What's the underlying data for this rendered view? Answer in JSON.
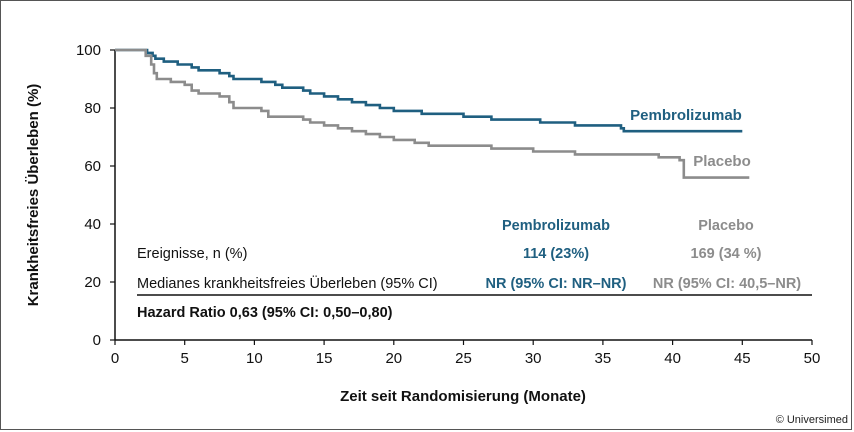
{
  "chart_data": {
    "type": "line",
    "title": "",
    "xlabel": "Zeit seit Randomisierung (Monate)",
    "ylabel": "Krankheitsfreies Überleben (%)",
    "xlim": [
      0,
      50
    ],
    "ylim": [
      0,
      100
    ],
    "xticks": [
      "0",
      "5",
      "10",
      "15",
      "20",
      "25",
      "30",
      "35",
      "40",
      "45",
      "50"
    ],
    "yticks": [
      "0",
      "20",
      "40",
      "60",
      "80",
      "100"
    ],
    "grid": false,
    "series": [
      {
        "name": "Pembrolizumab",
        "color": "#1f5f80",
        "x": [
          0,
          2.3,
          2.7,
          2.9,
          3.5,
          4.5,
          5.5,
          6.0,
          7.5,
          8.2,
          8.5,
          10.5,
          11.5,
          12.0,
          13.5,
          14.0,
          15.0,
          16.0,
          17.0,
          18.0,
          19.0,
          20.0,
          22.0,
          22.5,
          25.0,
          26.0,
          27.0,
          28.5,
          30.5,
          33.0,
          35.0,
          36.3,
          36.5,
          45.0
        ],
        "y": [
          100,
          99,
          98,
          97,
          96,
          95,
          94,
          93,
          92,
          91,
          90,
          89,
          88,
          87,
          86,
          85,
          84,
          83,
          82,
          81,
          80,
          79,
          78,
          78,
          77,
          77,
          76,
          76,
          75,
          74,
          74,
          73,
          72,
          72
        ]
      },
      {
        "name": "Placebo",
        "color": "#8c8c8c",
        "x": [
          0,
          2.2,
          2.6,
          2.8,
          3.0,
          4.0,
          5.0,
          5.5,
          6.0,
          7.5,
          8.2,
          8.5,
          10.5,
          11.0,
          13.5,
          14.0,
          15.0,
          16.0,
          17.0,
          18.0,
          19.0,
          20.0,
          21.5,
          22.5,
          24.0,
          25.5,
          27.0,
          28.5,
          30.0,
          32.0,
          33.0,
          36.0,
          39.0,
          40.5,
          40.8,
          45.5
        ],
        "y": [
          100,
          98,
          95,
          92,
          90,
          89,
          88,
          86,
          85,
          84,
          82,
          80,
          79,
          77,
          76,
          75,
          74,
          73,
          72,
          71,
          70,
          69,
          68,
          67,
          67,
          67,
          66,
          66,
          65,
          65,
          64,
          64,
          63,
          62,
          56,
          56
        ]
      }
    ],
    "series_labels": [
      "Pembrolizumab",
      "Placebo"
    ],
    "table": {
      "header_pembro": "Pembrolizumab",
      "header_placebo": "Placebo",
      "row1_label": "Ereignisse, n (%)",
      "row1_pembro": "114 (23%)",
      "row1_placebo": "169 (34 %)",
      "row2_label": "Medianes krankheitsfreies Überleben (95% CI)",
      "row2_pembro": "NR (95% CI: NR–NR)",
      "row2_placebo": "NR (95% CI:  40,5–NR)",
      "hazard": "Hazard Ratio 0,63 (95% CI: 0,50–0,80)"
    }
  },
  "copyright": "© Universimed"
}
